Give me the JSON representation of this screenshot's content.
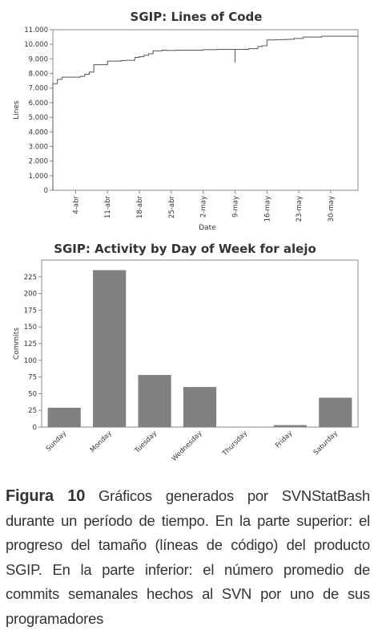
{
  "chart_data": [
    {
      "type": "line",
      "title": "SGIP: Lines of Code",
      "xlabel": "Date",
      "ylabel": "Lines",
      "ylim": [
        0,
        11000
      ],
      "yticks": [
        "0",
        "1.000",
        "2.000",
        "3.000",
        "4.000",
        "5.000",
        "6.000",
        "7.000",
        "8.000",
        "9.000",
        "10.000",
        "11.000"
      ],
      "xticks": [
        "4-abr",
        "11-abr",
        "18-abr",
        "25-abr",
        "2-may",
        "9-may",
        "16-may",
        "23-may",
        "30-may"
      ],
      "step": true,
      "x": [
        "03-30",
        "03-30",
        "03-31",
        "04-01",
        "04-05",
        "04-06",
        "04-07",
        "04-08",
        "04-10",
        "04-11",
        "04-13",
        "04-14",
        "04-15",
        "04-16",
        "04-17",
        "04-18",
        "04-19",
        "04-20",
        "04-21",
        "04-23",
        "04-24",
        "04-26",
        "04-28",
        "04-30",
        "05-02",
        "05-05",
        "05-07",
        "05-09",
        "05-09",
        "05-09",
        "05-12",
        "05-13",
        "05-14",
        "05-15",
        "05-16",
        "05-18",
        "05-20",
        "05-21",
        "05-22",
        "05-23",
        "05-24",
        "05-28",
        "06-03"
      ],
      "y": [
        0,
        7300,
        7600,
        7750,
        7800,
        7950,
        8100,
        8600,
        8600,
        8850,
        8850,
        8880,
        8900,
        8900,
        9100,
        9150,
        9250,
        9350,
        9550,
        9600,
        9580,
        9600,
        9600,
        9600,
        9630,
        9650,
        9650,
        9650,
        8750,
        9650,
        9700,
        9700,
        9850,
        9900,
        10300,
        10320,
        10330,
        10350,
        10400,
        10400,
        10500,
        10550,
        10550
      ]
    },
    {
      "type": "bar",
      "title": "SGIP: Activity by Day of Week for alejo",
      "ylabel": "Commits",
      "ylim": [
        0,
        250
      ],
      "yticks": [
        "0",
        "25",
        "50",
        "75",
        "100",
        "125",
        "150",
        "175",
        "200",
        "225"
      ],
      "categories": [
        "Sunday",
        "Monday",
        "Tuesday",
        "Wednesday",
        "Thursday",
        "Friday",
        "Saturday"
      ],
      "values": [
        29,
        235,
        78,
        60,
        0,
        3,
        44
      ],
      "bar_color": "#808080"
    }
  ],
  "caption": {
    "label": "Figura 10",
    "text": "Gráficos generados por SVNStatBash durante un período de tiempo. En la parte superior: el progreso del tamaño (líneas de código) del producto SGIP. En la parte inferior: el número promedio de commits semanales hechos al SVN por uno de sus programadores"
  }
}
